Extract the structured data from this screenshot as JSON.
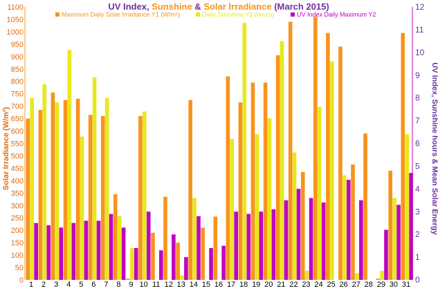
{
  "chart_data": {
    "type": "bar",
    "title": {
      "part1": "UV Index",
      "sep1": ", ",
      "part2": "Sunshine",
      "sep2": " & ",
      "part3": "Solar Irradiance",
      "part4": " (March 2015)"
    },
    "ylabel_left": "Solar Irradiance (W/m²)",
    "ylabel_right": "UV Index, Sunshine hours & Mean Solar Energy",
    "ylim_left": [
      0,
      1100
    ],
    "ylim_right": [
      0,
      12
    ],
    "yticks_left": [
      "0",
      "50",
      "100",
      "150",
      "200",
      "250",
      "300",
      "350",
      "400",
      "450",
      "500",
      "550",
      "600",
      "650",
      "700",
      "750",
      "800",
      "850",
      "900",
      "950",
      "1000",
      "1050",
      "1100"
    ],
    "yticks_right": [
      "0",
      "1",
      "2",
      "3",
      "4",
      "5",
      "6",
      "7",
      "8",
      "9",
      "10",
      "11",
      "12"
    ],
    "categories": [
      "1",
      "2",
      "3",
      "4",
      "5",
      "6",
      "7",
      "8",
      "9",
      "10",
      "11",
      "12",
      "13",
      "14",
      "15",
      "16",
      "17",
      "18",
      "19",
      "20",
      "21",
      "22",
      "23",
      "24",
      "25",
      "26",
      "27",
      "28",
      "29",
      "30",
      "31"
    ],
    "grid": false,
    "legend_position": "top",
    "series": [
      {
        "name": "Maximum Daily Solar Irradiance Y1 (W/m²)",
        "axis": "left",
        "color": "#f7941d",
        "values": [
          650,
          685,
          755,
          725,
          730,
          665,
          660,
          345,
          5,
          660,
          190,
          335,
          150,
          725,
          210,
          255,
          820,
          715,
          795,
          795,
          905,
          1040,
          435,
          1060,
          995,
          940,
          465,
          590,
          5,
          440,
          995
        ]
      },
      {
        "name": "Daily Sunshine Y2 (hours)",
        "axis": "right",
        "color": "#e8e81c",
        "values": [
          8.0,
          8.6,
          7.8,
          10.1,
          6.3,
          8.9,
          8.0,
          2.8,
          1.4,
          7.4,
          0.0,
          0.0,
          0.2,
          3.6,
          0.0,
          0.0,
          6.2,
          11.3,
          6.4,
          7.1,
          10.5,
          5.6,
          0.4,
          7.6,
          9.6,
          4.6,
          0.3,
          0.0,
          0.4,
          3.6,
          6.4
        ]
      },
      {
        "name": "UV Index Daily Maximum Y2",
        "axis": "right",
        "color": "#bf06bf",
        "values": [
          2.5,
          2.4,
          2.3,
          2.5,
          2.6,
          2.6,
          2.9,
          2.3,
          1.4,
          3.0,
          1.3,
          2.0,
          1.0,
          2.8,
          1.4,
          1.5,
          3.0,
          2.9,
          3.0,
          3.1,
          3.5,
          4.0,
          3.6,
          3.4,
          0.0,
          4.4,
          3.5,
          0.0,
          2.2,
          3.3,
          4.7
        ]
      }
    ]
  }
}
